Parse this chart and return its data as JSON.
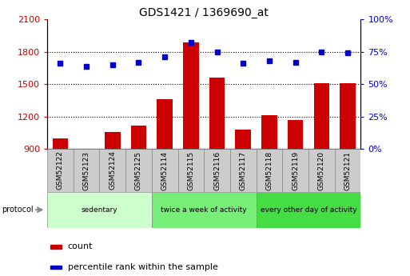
{
  "title": "GDS1421 / 1369690_at",
  "samples": [
    "GSM52122",
    "GSM52123",
    "GSM52124",
    "GSM52125",
    "GSM52114",
    "GSM52115",
    "GSM52116",
    "GSM52117",
    "GSM52118",
    "GSM52119",
    "GSM52120",
    "GSM52121"
  ],
  "counts": [
    1000,
    890,
    1060,
    1120,
    1360,
    1890,
    1560,
    1080,
    1210,
    1170,
    1510,
    1510
  ],
  "percentiles": [
    66,
    64,
    65,
    67,
    71,
    82,
    75,
    66,
    68,
    67,
    75,
    74
  ],
  "bar_color": "#cc0000",
  "dot_color": "#0000cc",
  "ylim_left": [
    900,
    2100
  ],
  "ylim_right": [
    0,
    100
  ],
  "yticks_left": [
    900,
    1200,
    1500,
    1800,
    2100
  ],
  "yticks_right": [
    0,
    25,
    50,
    75,
    100
  ],
  "grid_lines": [
    1200,
    1500,
    1800
  ],
  "groups": [
    {
      "label": "sedentary",
      "indices": [
        0,
        1,
        2,
        3
      ],
      "color": "#ccffcc"
    },
    {
      "label": "twice a week of activity",
      "indices": [
        4,
        5,
        6,
        7
      ],
      "color": "#77ee77"
    },
    {
      "label": "every other day of activity",
      "indices": [
        8,
        9,
        10,
        11
      ],
      "color": "#44dd44"
    }
  ],
  "protocol_label": "protocol",
  "legend_count": "count",
  "legend_percentile": "percentile rank within the sample",
  "tick_color_left": "#cc0000",
  "tick_color_right": "#0000cc",
  "sample_box_color": "#cccccc",
  "sample_box_edge": "#888888"
}
